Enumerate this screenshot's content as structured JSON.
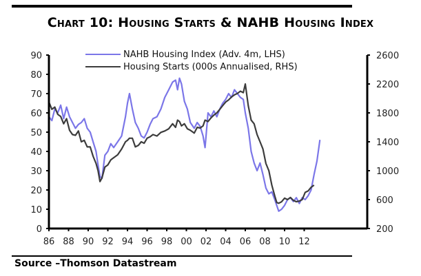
{
  "title": "Chart 10: Housing Starts & NAHB Housing Index",
  "source": "Source –Thomson Datastream",
  "colors": {
    "nahb": "#7b76e8",
    "starts": "#3c3c3c"
  },
  "chart_data": {
    "type": "line",
    "title": "Chart 10: Housing Starts & NAHB Housing Index",
    "xlabel": "",
    "ylabel": "",
    "x_ticks": [
      "86",
      "88",
      "90",
      "92",
      "94",
      "96",
      "98",
      "00",
      "02",
      "04",
      "06",
      "08",
      "10",
      "12"
    ],
    "x_range": [
      1986,
      2013.8
    ],
    "y_left": {
      "range": [
        0,
        90
      ],
      "ticks": [
        0,
        10,
        20,
        30,
        40,
        50,
        60,
        70,
        80,
        90
      ]
    },
    "y_right": {
      "range": [
        200,
        2600
      ],
      "ticks": [
        200,
        600,
        1000,
        1400,
        1800,
        2200,
        2600
      ]
    },
    "legend": {
      "placement": "top-left",
      "entries": [
        "NAHB Housing Index (Adv. 4m, LHS)",
        "Housing Starts (000s Annualised, RHS)"
      ]
    },
    "grid": false,
    "series": [
      {
        "name": "NAHB Housing Index (Adv. 4m, LHS)",
        "axis": "left",
        "x": [
          1986.0,
          1986.3,
          1986.6,
          1986.9,
          1987.2,
          1987.5,
          1987.8,
          1988.1,
          1988.4,
          1988.7,
          1989.0,
          1989.3,
          1989.6,
          1989.9,
          1990.2,
          1990.5,
          1990.8,
          1991.0,
          1991.2,
          1991.4,
          1991.7,
          1992.0,
          1992.3,
          1992.6,
          1993.0,
          1993.4,
          1993.8,
          1994.0,
          1994.2,
          1994.5,
          1994.8,
          1995.1,
          1995.4,
          1995.7,
          1996.0,
          1996.3,
          1996.6,
          1997.0,
          1997.4,
          1997.8,
          1998.2,
          1998.6,
          1998.9,
          1999.1,
          1999.3,
          1999.5,
          1999.8,
          2000.1,
          2000.4,
          2000.8,
          2001.1,
          2001.4,
          2001.7,
          2001.9,
          2002.2,
          2002.5,
          2002.8,
          2003.1,
          2003.4,
          2003.7,
          2004.0,
          2004.3,
          2004.6,
          2004.9,
          2005.2,
          2005.5,
          2005.8,
          2006.0,
          2006.3,
          2006.6,
          2006.9,
          2007.2,
          2007.5,
          2007.8,
          2008.1,
          2008.4,
          2008.7,
          2009.0,
          2009.2,
          2009.4,
          2009.7,
          2010.0,
          2010.3,
          2010.6,
          2010.9,
          2011.2,
          2011.5,
          2011.8,
          2012.1,
          2012.4,
          2012.7,
          2013.0,
          2013.3,
          2013.6
        ],
        "y": [
          58,
          56,
          62,
          60,
          64,
          57,
          63,
          58,
          55,
          52,
          54,
          55,
          57,
          52,
          50,
          45,
          40,
          33,
          27,
          26,
          38,
          40,
          44,
          42,
          45,
          48,
          58,
          65,
          70,
          62,
          55,
          52,
          48,
          47,
          50,
          54,
          57,
          58,
          62,
          68,
          72,
          76,
          77,
          72,
          78,
          75,
          66,
          62,
          55,
          52,
          55,
          53,
          48,
          42,
          60,
          58,
          61,
          58,
          62,
          65,
          67,
          70,
          68,
          72,
          70,
          68,
          67,
          60,
          52,
          40,
          34,
          30,
          34,
          28,
          21,
          18,
          19,
          15,
          12,
          9,
          10,
          12,
          15,
          16,
          14,
          16,
          13,
          16,
          15,
          17,
          20,
          28,
          35,
          46
        ]
      },
      {
        "name": "Housing Starts (000s Annualised, RHS)",
        "axis": "right",
        "x": [
          1986.0,
          1986.3,
          1986.6,
          1986.9,
          1987.2,
          1987.5,
          1987.8,
          1988.1,
          1988.4,
          1988.7,
          1989.0,
          1989.3,
          1989.6,
          1989.9,
          1990.2,
          1990.5,
          1990.8,
          1991.0,
          1991.2,
          1991.4,
          1991.7,
          1992.0,
          1992.3,
          1992.6,
          1993.0,
          1993.4,
          1993.8,
          1994.0,
          1994.2,
          1994.5,
          1994.8,
          1995.1,
          1995.4,
          1995.7,
          1996.0,
          1996.3,
          1996.6,
          1997.0,
          1997.4,
          1997.8,
          1998.2,
          1998.6,
          1998.9,
          1999.1,
          1999.3,
          1999.5,
          1999.8,
          2000.1,
          2000.4,
          2000.8,
          2001.1,
          2001.4,
          2001.7,
          2001.9,
          2002.2,
          2002.5,
          2002.8,
          2003.1,
          2003.4,
          2003.7,
          2004.0,
          2004.3,
          2004.6,
          2004.9,
          2005.2,
          2005.5,
          2005.8,
          2006.0,
          2006.3,
          2006.6,
          2006.9,
          2007.2,
          2007.5,
          2007.8,
          2008.1,
          2008.4,
          2008.7,
          2009.0,
          2009.2,
          2009.4,
          2009.7,
          2010.0,
          2010.3,
          2010.6,
          2010.9,
          2011.2,
          2011.5,
          2011.8,
          2012.1,
          2012.4,
          2012.7,
          2013.0
        ],
        "y": [
          1950,
          1850,
          1880,
          1780,
          1750,
          1650,
          1720,
          1560,
          1500,
          1490,
          1550,
          1400,
          1420,
          1330,
          1330,
          1200,
          1100,
          1000,
          850,
          900,
          1050,
          1080,
          1150,
          1180,
          1220,
          1300,
          1400,
          1420,
          1450,
          1450,
          1330,
          1350,
          1400,
          1380,
          1450,
          1470,
          1500,
          1480,
          1530,
          1550,
          1580,
          1650,
          1600,
          1700,
          1680,
          1620,
          1650,
          1580,
          1560,
          1520,
          1600,
          1590,
          1620,
          1700,
          1680,
          1730,
          1770,
          1800,
          1850,
          1900,
          1950,
          1980,
          2020,
          2050,
          2070,
          2100,
          2080,
          2200,
          1900,
          1700,
          1650,
          1500,
          1400,
          1300,
          1100,
          1000,
          800,
          650,
          560,
          550,
          570,
          620,
          600,
          630,
          590,
          570,
          580,
          600,
          700,
          720,
          770,
          800
        ]
      }
    ]
  }
}
